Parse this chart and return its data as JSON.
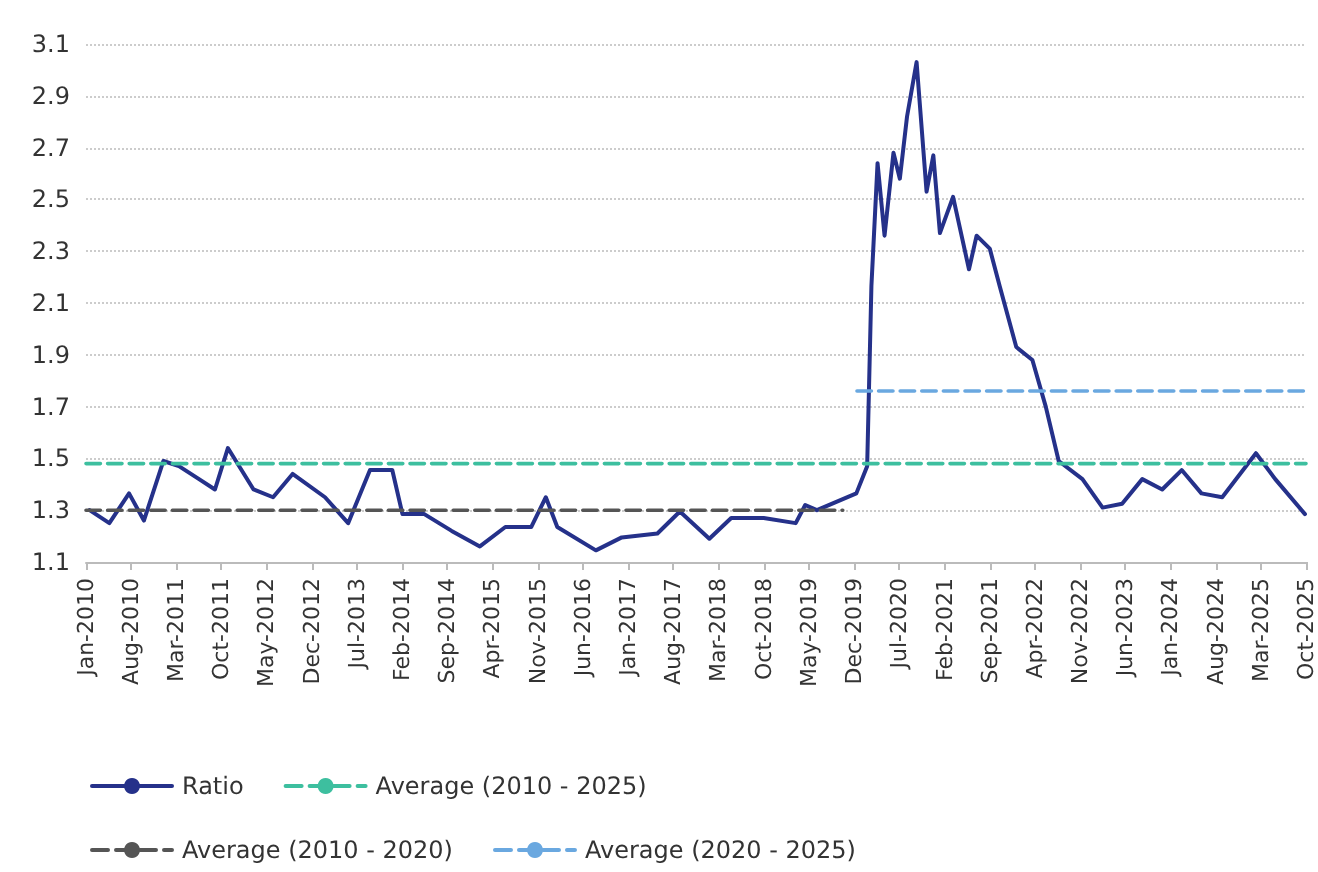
{
  "chart_data": {
    "type": "line",
    "xlim": [
      "2010-01",
      "2025-10"
    ],
    "ylim": [
      1.1,
      3.1
    ],
    "yticks": [
      1.1,
      1.3,
      1.5,
      1.7,
      1.9,
      2.1,
      2.3,
      2.5,
      2.7,
      2.9,
      3.1
    ],
    "xticks": [
      {
        "value": "2010-01",
        "label": "Jan-2010"
      },
      {
        "value": "2010-08",
        "label": "Aug-2010"
      },
      {
        "value": "2011-03",
        "label": "Mar-2011"
      },
      {
        "value": "2011-10",
        "label": "Oct-2011"
      },
      {
        "value": "2012-05",
        "label": "May-2012"
      },
      {
        "value": "2012-12",
        "label": "Dec-2012"
      },
      {
        "value": "2013-07",
        "label": "Jul-2013"
      },
      {
        "value": "2014-02",
        "label": "Feb-2014"
      },
      {
        "value": "2014-09",
        "label": "Sep-2014"
      },
      {
        "value": "2015-04",
        "label": "Apr-2015"
      },
      {
        "value": "2015-11",
        "label": "Nov-2015"
      },
      {
        "value": "2016-06",
        "label": "Jun-2016"
      },
      {
        "value": "2017-01",
        "label": "Jan-2017"
      },
      {
        "value": "2017-08",
        "label": "Aug-2017"
      },
      {
        "value": "2018-03",
        "label": "Mar-2018"
      },
      {
        "value": "2018-10",
        "label": "Oct-2018"
      },
      {
        "value": "2019-05",
        "label": "May-2019"
      },
      {
        "value": "2019-12",
        "label": "Dec-2019"
      },
      {
        "value": "2020-07",
        "label": "Jul-2020"
      },
      {
        "value": "2021-02",
        "label": "Feb-2021"
      },
      {
        "value": "2021-09",
        "label": "Sep-2021"
      },
      {
        "value": "2022-04",
        "label": "Apr-2022"
      },
      {
        "value": "2022-11",
        "label": "Nov-2022"
      },
      {
        "value": "2023-06",
        "label": "Jun-2023"
      },
      {
        "value": "2024-01",
        "label": "Jan-2024"
      },
      {
        "value": "2024-08",
        "label": "Aug-2024"
      },
      {
        "value": "2025-03",
        "label": "Mar-2025"
      },
      {
        "value": "2025-10",
        "label": "Oct-2025"
      }
    ],
    "grid": "y",
    "legend": "bottom",
    "marker": "none",
    "series": [
      {
        "name": "Ratio",
        "color": "#25318a",
        "line_style": "solid",
        "x": [
          "2010-01-18",
          "2010-04-21",
          "2010-07-23",
          "2010-10-01",
          "2011-01-01",
          "2011-03-15",
          "2011-06-18",
          "2011-09-01",
          "2011-11-01",
          "2012-03-01",
          "2012-06-01",
          "2012-09-01",
          "2013-02-01",
          "2013-05-21",
          "2013-09-01",
          "2013-12-15",
          "2014-02-01",
          "2014-05-15",
          "2014-09-21",
          "2015-02-01",
          "2015-06-01",
          "2015-10-01",
          "2015-12-09",
          "2016-02-01",
          "2016-08-01",
          "2016-12-01",
          "2017-05-18",
          "2017-09-01",
          "2018-01-18",
          "2018-05-01",
          "2018-10-01",
          "2019-03-01",
          "2019-04-15",
          "2019-06-09",
          "2019-12-12",
          "2020-02-01",
          "2020-02-21",
          "2020-03-21",
          "2020-04-23",
          "2020-06-04",
          "2020-07-04",
          "2020-08-07",
          "2020-09-21",
          "2020-11-07",
          "2020-12-09",
          "2021-01-09",
          "2021-03-12",
          "2021-05-26",
          "2021-07-01",
          "2021-09-01",
          "2021-10-18",
          "2022-01-04",
          "2022-03-21",
          "2022-05-23",
          "2022-07-23",
          "2022-11-12",
          "2023-02-15",
          "2023-05-18",
          "2023-08-21",
          "2023-11-23",
          "2024-02-23",
          "2024-05-26",
          "2024-09-01",
          "2025-02-07",
          "2025-05-09",
          "2025-09-26"
        ],
        "values": [
          1.3,
          1.25,
          1.365,
          1.26,
          1.49,
          1.47,
          1.42,
          1.38,
          1.54,
          1.38,
          1.35,
          1.44,
          1.35,
          1.25,
          1.455,
          1.455,
          1.285,
          1.285,
          1.22,
          1.16,
          1.235,
          1.235,
          1.35,
          1.235,
          1.145,
          1.195,
          1.21,
          1.295,
          1.19,
          1.27,
          1.27,
          1.25,
          1.32,
          1.3,
          1.365,
          1.47,
          2.165,
          2.64,
          2.36,
          2.68,
          2.58,
          2.82,
          3.03,
          2.53,
          2.67,
          2.37,
          2.51,
          2.23,
          2.36,
          2.31,
          2.165,
          1.93,
          1.88,
          1.7,
          1.49,
          1.42,
          1.31,
          1.325,
          1.42,
          1.38,
          1.455,
          1.365,
          1.35,
          1.52,
          1.42,
          1.285
        ]
      },
      {
        "name": "Average (2010 - 2025)",
        "color": "#3dbf9f",
        "line_style": "dashed",
        "x": [
          "2010-01",
          "2025-10"
        ],
        "values": [
          1.48,
          1.48
        ]
      },
      {
        "name": "Average (2010 - 2020)",
        "color": "#555555",
        "line_style": "dashed",
        "x": [
          "2010-01",
          "2019-10-09"
        ],
        "values": [
          1.3,
          1.3
        ]
      },
      {
        "name": "Average (2020 - 2025)",
        "color": "#6aa8e0",
        "line_style": "dashed",
        "x": [
          "2019-12-15",
          "2025-10"
        ],
        "values": [
          1.76,
          1.76
        ]
      }
    ]
  }
}
